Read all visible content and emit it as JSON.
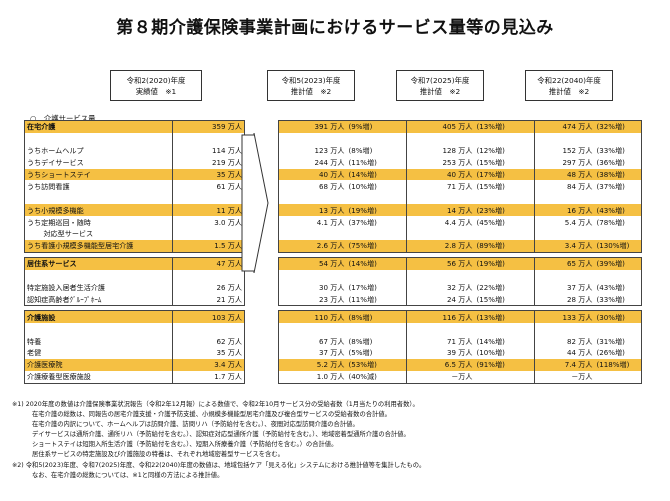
{
  "title": "第８期介護保険事業計画におけるサービス量等の見込み",
  "headers": [
    {
      "line1": "令和2(2020)年度",
      "line2": "実績値　※1"
    },
    {
      "line1": "令和5(2023)年度",
      "line2": "推計値　※2"
    },
    {
      "line1": "令和7(2025)年度",
      "line2": "推計値　※2"
    },
    {
      "line1": "令和22(2040)年度",
      "line2": "推計値　※2"
    }
  ],
  "section_label": "○　介護サービス量",
  "rows": [
    {
      "name": "在宅介護",
      "c0": "359 万人",
      "v1": "391 万人",
      "p1": "(9%増)",
      "v2": "405 万人",
      "p2": "(13%増)",
      "v3": "474 万人",
      "p3": "(32%増)",
      "hl": true,
      "bold": true,
      "top": true
    },
    {
      "name": "",
      "c0": "",
      "v1": "",
      "p1": "",
      "v2": "",
      "p2": "",
      "v3": "",
      "p3": ""
    },
    {
      "name": "うちホームヘルプ",
      "c0": "114 万人",
      "v1": "123 万人",
      "p1": "(8%増)",
      "v2": "128 万人",
      "p2": "(12%増)",
      "v3": "152 万人",
      "p3": "(33%増)"
    },
    {
      "name": "うちデイサービス",
      "c0": "219 万人",
      "v1": "244 万人",
      "p1": "(11%増)",
      "v2": "253 万人",
      "p2": "(15%増)",
      "v3": "297 万人",
      "p3": "(36%増)"
    },
    {
      "name": "うちショートステイ",
      "c0": "35 万人",
      "v1": "40 万人",
      "p1": "(14%増)",
      "v2": "40 万人",
      "p2": "(17%増)",
      "v3": "48 万人",
      "p3": "(38%増)",
      "hl": true
    },
    {
      "name": "うち訪問看護",
      "c0": "61 万人",
      "v1": "68 万人",
      "p1": "(10%増)",
      "v2": "71 万人",
      "p2": "(15%増)",
      "v3": "84 万人",
      "p3": "(37%増)"
    },
    {
      "name": "",
      "c0": "",
      "v1": "",
      "p1": "",
      "v2": "",
      "p2": "",
      "v3": "",
      "p3": ""
    },
    {
      "name": "うち小規模多機能",
      "c0": "11 万人",
      "v1": "13 万人",
      "p1": "(19%増)",
      "v2": "14 万人",
      "p2": "(23%増)",
      "v3": "16 万人",
      "p3": "(43%増)",
      "hl": true
    },
    {
      "name": "うち定期巡回・随時",
      "c0": "3.0 万人",
      "v1": "4.1 万人",
      "p1": "(37%増)",
      "v2": "4.4 万人",
      "p2": "(45%増)",
      "v3": "5.4 万人",
      "p3": "(78%増)"
    },
    {
      "name": "　　 対応型サービス",
      "c0": "",
      "v1": "",
      "p1": "",
      "v2": "",
      "p2": "",
      "v3": "",
      "p3": ""
    },
    {
      "name": "うち看護小規模多機能型居宅介護",
      "c0": "1.5 万人",
      "v1": "2.6 万人",
      "p1": "(75%増)",
      "v2": "2.8 万人",
      "p2": "(89%増)",
      "v3": "3.4 万人",
      "p3": "(130%増)",
      "hl": true,
      "bottom": true
    },
    {
      "name": "居住系サービス",
      "c0": "47 万人",
      "v1": "54 万人",
      "p1": "(14%増)",
      "v2": "56 万人",
      "p2": "(19%増)",
      "v3": "65 万人",
      "p3": "(39%増)",
      "hl": true,
      "bold": true,
      "top": true,
      "spacer": true
    },
    {
      "name": "",
      "c0": "",
      "v1": "",
      "p1": "",
      "v2": "",
      "p2": "",
      "v3": "",
      "p3": ""
    },
    {
      "name": "特定施設入居者生活介護",
      "c0": "26 万人",
      "v1": "30 万人",
      "p1": "(17%増)",
      "v2": "32 万人",
      "p2": "(22%増)",
      "v3": "37 万人",
      "p3": "(43%増)"
    },
    {
      "name": "認知症高齢者ｸﾞﾙｰﾌﾟﾎｰﾑ",
      "c0": "21 万人",
      "v1": "23 万人",
      "p1": "(11%増)",
      "v2": "24 万人",
      "p2": "(15%増)",
      "v3": "28 万人",
      "p3": "(33%増)",
      "bottom": true
    },
    {
      "name": "介護施設",
      "c0": "103 万人",
      "v1": "110 万人",
      "p1": "(8%増)",
      "v2": "116 万人",
      "p2": "(13%増)",
      "v3": "133 万人",
      "p3": "(30%増)",
      "hl": true,
      "bold": true,
      "top": true,
      "spacer": true
    },
    {
      "name": "",
      "c0": "",
      "v1": "",
      "p1": "",
      "v2": "",
      "p2": "",
      "v3": "",
      "p3": ""
    },
    {
      "name": "特養",
      "c0": "62 万人",
      "v1": "67 万人",
      "p1": "(8%増)",
      "v2": "71 万人",
      "p2": "(14%増)",
      "v3": "82 万人",
      "p3": "(31%増)"
    },
    {
      "name": "老健",
      "c0": "35 万人",
      "v1": "37 万人",
      "p1": "(5%増)",
      "v2": "39 万人",
      "p2": "(10%増)",
      "v3": "44 万人",
      "p3": "(26%増)"
    },
    {
      "name": "介護医療院",
      "c0": "3.4 万人",
      "v1": "5.2 万人",
      "p1": "(53%増)",
      "v2": "6.5 万人",
      "p2": "(91%増)",
      "v3": "7.4 万人",
      "p3": "(118%増)",
      "hl": true
    },
    {
      "name": "介護療養型医療施設",
      "c0": "1.7 万人",
      "v1": "1.0 万人",
      "p1": "(40%減)",
      "v2": "－万人",
      "p2": "",
      "v3": "－万人",
      "p3": "",
      "bottom": true
    }
  ],
  "notes": [
    "※1) 2020年度の数値は介護保険事業状況報告（令和2年12月報）による数値で、令和2年10月サービス分の受給者数（1月当たりの利用者数）。",
    "在宅介護の総数は、同報告の居宅介護支援・介護予防支援、小規模多機能型居宅介護及び複合型サービスの受給者数の合計値。",
    "在宅介護の内訳について、ホームヘルプは訪問介護、訪問リハ（予防給付を含む。）、夜間対応型訪問介護の合計値。",
    "デイサービスは通所介護、通所リハ（予防給付を含む。）、認知症対応型通所介護（予防給付を含む。）、地域密着型通所介護の合計値。",
    "ショートステイは短期入所生活介護（予防給付を含む。）、短期入所療養介護（予防給付を含む。）の合計値。",
    "居住系サービスの特定施設及び介護施設の特養は、それぞれ地域密着型サービスを含む。",
    "※2) 令和5(2023)年度、令和7(2025)年度、令和22(2040)年度の数値は、地域包括ケア「見える化」システムにおける推計値等を集計したもの。",
    "なお、在宅介護の総数については、※1と同様の方法による推計値。"
  ],
  "colors": {
    "highlight": "#f5c043"
  }
}
